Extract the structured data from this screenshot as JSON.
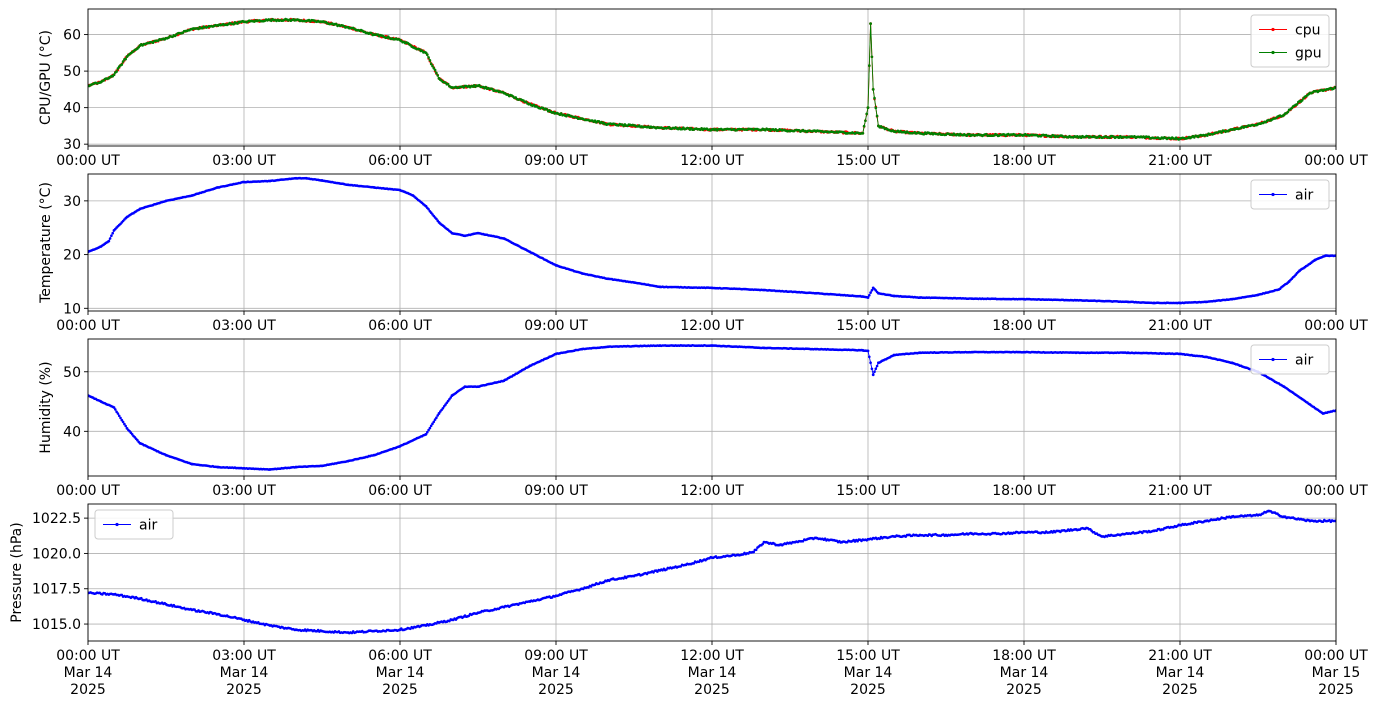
{
  "chart_data": [
    {
      "type": "line",
      "ylabel": "CPU/GPU (°C)",
      "ylim": [
        29.5,
        67
      ],
      "yticks": [
        30,
        40,
        50,
        60
      ],
      "ytick_labels": [
        "30",
        "40",
        "50",
        "60"
      ],
      "xlim": [
        0,
        24
      ],
      "xticks": [
        0,
        3,
        6,
        9,
        12,
        15,
        18,
        21,
        24
      ],
      "xtick_labels": [
        "00:00 UT",
        "03:00 UT",
        "06:00 UT",
        "09:00 UT",
        "12:00 UT",
        "15:00 UT",
        "18:00 UT",
        "21:00 UT",
        "00:00 UT"
      ],
      "grid": true,
      "legend_position": "upper right",
      "series": [
        {
          "name": "cpu",
          "color": "#ff0000",
          "x": [
            0,
            0.25,
            0.5,
            0.75,
            1,
            1.5,
            2,
            2.5,
            3,
            3.5,
            4,
            4.5,
            5,
            5.5,
            6,
            6.5,
            6.75,
            7,
            7.5,
            8,
            8.5,
            9,
            9.5,
            10,
            11,
            12,
            13,
            14,
            14.9,
            15.0,
            15.05,
            15.1,
            15.2,
            15.5,
            16,
            17,
            18,
            19,
            20,
            21,
            21.5,
            22,
            22.5,
            23,
            23.5,
            24
          ],
          "y": [
            46,
            47,
            49,
            54,
            57,
            59,
            61.5,
            62.5,
            63.5,
            64,
            64,
            63.5,
            62,
            60,
            58.5,
            55,
            48,
            45.5,
            46,
            44,
            41,
            38.5,
            37,
            35.5,
            34.5,
            34,
            34,
            33.5,
            33,
            40,
            63,
            45,
            35,
            33.5,
            33,
            32.5,
            32.5,
            32,
            32,
            31.5,
            32.5,
            34,
            35.5,
            38,
            44,
            45.5
          ]
        },
        {
          "name": "gpu",
          "color": "#008000",
          "x": [
            0,
            0.25,
            0.5,
            0.75,
            1,
            1.5,
            2,
            2.5,
            3,
            3.5,
            4,
            4.5,
            5,
            5.5,
            6,
            6.5,
            6.75,
            7,
            7.5,
            8,
            8.5,
            9,
            9.5,
            10,
            11,
            12,
            13,
            14,
            14.9,
            15.0,
            15.05,
            15.1,
            15.2,
            15.5,
            16,
            17,
            18,
            19,
            20,
            21,
            21.5,
            22,
            22.5,
            23,
            23.5,
            24
          ],
          "y": [
            46,
            47,
            49,
            54,
            57,
            59,
            61.5,
            62.5,
            63.5,
            64,
            64,
            63.5,
            62,
            60,
            58.5,
            55,
            48,
            45.5,
            46,
            44,
            41,
            38.5,
            37,
            35.5,
            34.5,
            34,
            34,
            33.5,
            33,
            40,
            63,
            45,
            35,
            33.5,
            33,
            32.5,
            32.5,
            32,
            32,
            31.5,
            32.5,
            34,
            35.5,
            38,
            44,
            45.5
          ]
        }
      ]
    },
    {
      "type": "line",
      "ylabel": "Temperature (°C)",
      "ylim": [
        9.5,
        35
      ],
      "yticks": [
        10,
        20,
        30
      ],
      "ytick_labels": [
        "10",
        "20",
        "30"
      ],
      "xlim": [
        0,
        24
      ],
      "xticks": [
        0,
        3,
        6,
        9,
        12,
        15,
        18,
        21,
        24
      ],
      "xtick_labels": [
        "00:00 UT",
        "03:00 UT",
        "06:00 UT",
        "09:00 UT",
        "12:00 UT",
        "15:00 UT",
        "18:00 UT",
        "21:00 UT",
        "00:00 UT"
      ],
      "grid": true,
      "legend_position": "upper right",
      "series": [
        {
          "name": "air",
          "color": "#0000ff",
          "x": [
            0,
            0.25,
            0.4,
            0.5,
            0.75,
            1,
            1.5,
            2,
            2.5,
            3,
            3.5,
            4,
            4.2,
            4.5,
            5,
            5.5,
            6,
            6.25,
            6.5,
            6.75,
            7,
            7.25,
            7.5,
            8,
            8.5,
            9,
            9.5,
            10,
            10.5,
            11,
            12,
            13,
            14,
            14.9,
            15.0,
            15.1,
            15.2,
            15.5,
            16,
            17,
            18,
            19,
            20,
            20.5,
            21,
            21.5,
            22,
            22.5,
            22.9,
            23.1,
            23.3,
            23.6,
            23.8,
            24
          ],
          "y": [
            20.5,
            21.5,
            22.5,
            24.5,
            27,
            28.5,
            30,
            31,
            32.5,
            33.5,
            33.7,
            34.2,
            34.2,
            33.8,
            33,
            32.5,
            32,
            31,
            29,
            26,
            24,
            23.5,
            24,
            23,
            20.5,
            18,
            16.5,
            15.5,
            14.8,
            14,
            13.8,
            13.4,
            12.8,
            12.2,
            12,
            13.8,
            12.8,
            12.3,
            12,
            11.8,
            11.7,
            11.5,
            11.2,
            11,
            11,
            11.2,
            11.7,
            12.5,
            13.5,
            15,
            17,
            19,
            19.8,
            19.8
          ]
        }
      ]
    },
    {
      "type": "line",
      "ylabel": "Humidity (%)",
      "ylim": [
        32.5,
        55.5
      ],
      "yticks": [
        40,
        50
      ],
      "ytick_labels": [
        "40",
        "50"
      ],
      "xlim": [
        0,
        24
      ],
      "xticks": [
        0,
        3,
        6,
        9,
        12,
        15,
        18,
        21,
        24
      ],
      "xtick_labels": [
        "00:00 UT",
        "03:00 UT",
        "06:00 UT",
        "09:00 UT",
        "12:00 UT",
        "15:00 UT",
        "18:00 UT",
        "21:00 UT",
        "00:00 UT"
      ],
      "grid": true,
      "legend_position": "upper right",
      "series": [
        {
          "name": "air",
          "color": "#0000ff",
          "x": [
            0,
            0.25,
            0.5,
            0.75,
            1,
            1.5,
            2,
            2.5,
            3,
            3.5,
            4,
            4.5,
            5,
            5.5,
            6,
            6.5,
            6.75,
            7,
            7.25,
            7.5,
            8,
            8.5,
            9,
            9.5,
            10,
            11,
            12,
            13,
            14,
            14.9,
            15.0,
            15.1,
            15.2,
            15.5,
            16,
            17,
            18,
            19,
            20,
            21,
            21.5,
            22,
            22.5,
            23,
            23.5,
            23.75,
            24
          ],
          "y": [
            46,
            45,
            44,
            40.5,
            38,
            36,
            34.5,
            34,
            33.8,
            33.6,
            34,
            34.2,
            35,
            36,
            37.5,
            39.5,
            43,
            46,
            47.5,
            47.5,
            48.5,
            51,
            53,
            53.8,
            54.2,
            54.4,
            54.4,
            54,
            53.8,
            53.6,
            53.5,
            49.5,
            51.5,
            52.8,
            53.2,
            53.3,
            53.3,
            53.2,
            53.2,
            53,
            52.5,
            51.5,
            50,
            47.5,
            44.5,
            43,
            43.5
          ]
        }
      ]
    },
    {
      "type": "line",
      "ylabel": "Pressure (hPa)",
      "ylim": [
        1013.8,
        1023.5
      ],
      "yticks": [
        1015.0,
        1017.5,
        1020.0,
        1022.5
      ],
      "ytick_labels": [
        "1015.0",
        "1017.5",
        "1020.0",
        "1022.5"
      ],
      "xlim": [
        0,
        24
      ],
      "xticks": [
        0,
        3,
        6,
        9,
        12,
        15,
        18,
        21,
        24
      ],
      "xtick_labels": [
        "00:00 UT\nMar 14\n2025",
        "03:00 UT\nMar 14\n2025",
        "06:00 UT\nMar 14\n2025",
        "09:00 UT\nMar 14\n2025",
        "12:00 UT\nMar 14\n2025",
        "15:00 UT\nMar 14\n2025",
        "18:00 UT\nMar 14\n2025",
        "21:00 UT\nMar 14\n2025",
        "00:00 UT\nMar 15\n2025"
      ],
      "grid": true,
      "legend_position": "upper left",
      "series": [
        {
          "name": "air",
          "color": "#0000ff",
          "x": [
            0,
            0.5,
            1,
            1.5,
            2,
            2.5,
            3,
            3.5,
            4,
            4.5,
            5,
            5.5,
            6,
            6.5,
            7,
            7.5,
            8,
            8.5,
            9,
            9.5,
            10,
            10.5,
            11,
            11.5,
            12,
            12.5,
            12.8,
            13.0,
            13.3,
            13.6,
            14,
            14.5,
            15,
            15.5,
            16,
            16.5,
            17,
            17.5,
            18,
            18.5,
            19,
            19.2,
            19.5,
            20,
            20.5,
            21,
            21.5,
            22,
            22.5,
            22.7,
            23,
            23.5,
            24
          ],
          "y": [
            1017.2,
            1017.1,
            1016.8,
            1016.4,
            1016.0,
            1015.7,
            1015.3,
            1014.9,
            1014.6,
            1014.5,
            1014.4,
            1014.5,
            1014.6,
            1014.9,
            1015.3,
            1015.8,
            1016.2,
            1016.6,
            1017.0,
            1017.5,
            1018.1,
            1018.4,
            1018.8,
            1019.2,
            1019.7,
            1019.9,
            1020.1,
            1020.8,
            1020.6,
            1020.8,
            1021.1,
            1020.8,
            1021.0,
            1021.2,
            1021.3,
            1021.3,
            1021.4,
            1021.4,
            1021.5,
            1021.5,
            1021.7,
            1021.8,
            1021.2,
            1021.4,
            1021.6,
            1022.0,
            1022.3,
            1022.6,
            1022.7,
            1023.0,
            1022.6,
            1022.3,
            1022.3
          ]
        }
      ]
    }
  ]
}
